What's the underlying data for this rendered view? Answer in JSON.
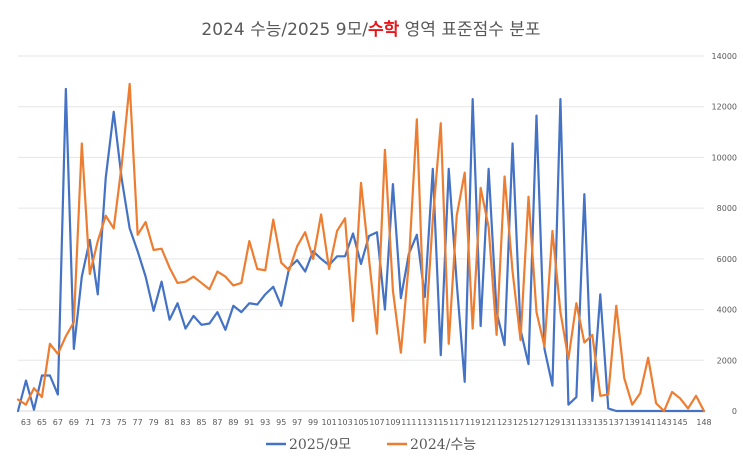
{
  "chart_data": {
    "type": "line",
    "title": {
      "prefix": "2024 수능/2025 9모/",
      "accent": "수학",
      "suffix": " 영역 표준점수 분포"
    },
    "xlabel": "",
    "ylabel": "",
    "x_start": 62,
    "x_end": 148,
    "x_tick_labels": [
      "63",
      "65",
      "67",
      "69",
      "71",
      "73",
      "75",
      "77",
      "79",
      "81",
      "83",
      "85",
      "87",
      "89",
      "91",
      "93",
      "95",
      "97",
      "99",
      "101",
      "103",
      "105",
      "107",
      "109",
      "111",
      "113",
      "115",
      "117",
      "119",
      "121",
      "123",
      "125",
      "127",
      "129",
      "131",
      "133",
      "135",
      "137",
      "139",
      "141",
      "143",
      "145",
      "148"
    ],
    "ylim": [
      0,
      14000
    ],
    "y_ticks": [
      0,
      2000,
      4000,
      6000,
      8000,
      10000,
      12000,
      14000
    ],
    "grid": true,
    "legend_position": "bottom",
    "colors": {
      "series_2025": "#4472c4",
      "series_2024": "#ed7d31",
      "title_accent": "#e8161a"
    },
    "series": [
      {
        "name": "2025/9모",
        "x": [
          62,
          63,
          64,
          65,
          66,
          67,
          68,
          69,
          70,
          71,
          72,
          73,
          74,
          75,
          76,
          77,
          78,
          79,
          80,
          81,
          82,
          83,
          84,
          85,
          86,
          87,
          88,
          89,
          90,
          91,
          92,
          93,
          94,
          95,
          96,
          97,
          98,
          99,
          100,
          101,
          102,
          103,
          104,
          105,
          106,
          107,
          108,
          109,
          110,
          111,
          112,
          113,
          114,
          115,
          116,
          117,
          118,
          119,
          120,
          121,
          122,
          123,
          124,
          125,
          126,
          127,
          128,
          129,
          130,
          131,
          132,
          133,
          134,
          135,
          136,
          137,
          138,
          139,
          140,
          141,
          142,
          143,
          144,
          145,
          146,
          147,
          148
        ],
        "values": [
          0,
          1200,
          50,
          1400,
          1400,
          650,
          12700,
          2450,
          5300,
          6750,
          4600,
          9200,
          11800,
          9150,
          7200,
          6300,
          5300,
          3950,
          5100,
          3600,
          4250,
          3250,
          3750,
          3400,
          3450,
          3900,
          3200,
          4150,
          3900,
          4250,
          4200,
          4600,
          4900,
          4150,
          5650,
          5950,
          5500,
          6300,
          6000,
          5750,
          6100,
          6100,
          7000,
          5800,
          6900,
          7050,
          4000,
          8950,
          4450,
          6200,
          6950,
          4500,
          9550,
          2200,
          9550,
          5050,
          1150,
          12300,
          3350,
          9550,
          3900,
          2600,
          10550,
          3200,
          1850,
          11650,
          2450,
          1000,
          12300,
          250,
          550,
          8550,
          400,
          4600,
          100,
          0,
          0,
          0,
          0,
          0,
          0,
          0,
          0,
          0,
          0,
          0,
          0
        ]
      },
      {
        "name": "2024/수능",
        "x": [
          62,
          63,
          64,
          65,
          66,
          67,
          68,
          69,
          70,
          71,
          72,
          73,
          74,
          75,
          76,
          77,
          78,
          79,
          80,
          81,
          82,
          83,
          84,
          85,
          86,
          87,
          88,
          89,
          90,
          91,
          92,
          93,
          94,
          95,
          96,
          97,
          98,
          99,
          100,
          101,
          102,
          103,
          104,
          105,
          106,
          107,
          108,
          109,
          110,
          111,
          112,
          113,
          114,
          115,
          116,
          117,
          118,
          119,
          120,
          121,
          122,
          123,
          124,
          125,
          126,
          127,
          128,
          129,
          130,
          131,
          132,
          133,
          134,
          135,
          136,
          137,
          138,
          139,
          140,
          141,
          142,
          143,
          144,
          145,
          146,
          147,
          148
        ],
        "values": [
          450,
          250,
          900,
          550,
          2650,
          2250,
          2950,
          3500,
          10550,
          5400,
          6700,
          7700,
          7200,
          9700,
          12900,
          6950,
          7450,
          6350,
          6400,
          5650,
          5050,
          5100,
          5300,
          5050,
          4800,
          5500,
          5300,
          4950,
          5050,
          6700,
          5600,
          5550,
          7550,
          5850,
          5550,
          6500,
          7050,
          6000,
          7750,
          5600,
          7100,
          7600,
          3550,
          9000,
          6000,
          3050,
          10300,
          4750,
          2300,
          5850,
          11500,
          2700,
          7550,
          11350,
          2650,
          7700,
          9400,
          3250,
          8800,
          7250,
          3000,
          9250,
          5500,
          2800,
          8450,
          3900,
          2550,
          7100,
          3900,
          2050,
          4250,
          2700,
          3000,
          600,
          650,
          4150,
          1300,
          250,
          700,
          2100,
          300,
          0,
          750,
          500,
          100,
          600,
          0
        ]
      }
    ]
  }
}
